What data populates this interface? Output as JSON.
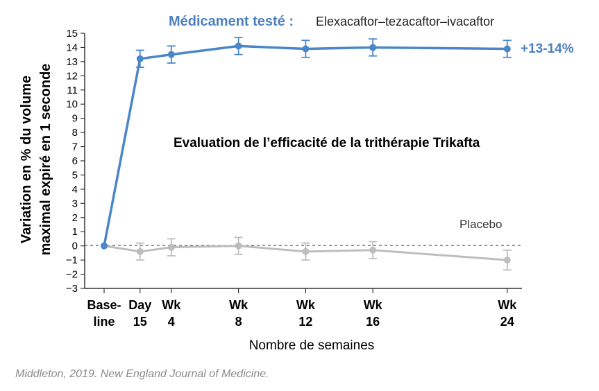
{
  "chart_data": {
    "type": "line",
    "title": "Evaluation de l’efficacité de la trithérapie Trikafta",
    "header_label": "Médicament testé :",
    "header_drug": "Elexacaftor–tezacaftor–ivacaftor",
    "xlabel": "Nombre de semaines",
    "ylabel_lines": [
      "Variation en % du volume",
      "maximal expiré en 1 seconde"
    ],
    "categories": [
      {
        "top": "Base-",
        "bottom": "line",
        "week": 0
      },
      {
        "top": "Day",
        "bottom": "15",
        "week": 2.14
      },
      {
        "top": "Wk",
        "bottom": "4",
        "week": 4
      },
      {
        "top": "Wk",
        "bottom": "8",
        "week": 8
      },
      {
        "top": "Wk",
        "bottom": "12",
        "week": 12
      },
      {
        "top": "Wk",
        "bottom": "16",
        "week": 16
      },
      {
        "top": "Wk",
        "bottom": "24",
        "week": 24
      }
    ],
    "ylim": [
      -3,
      15
    ],
    "yticks": [
      -3,
      -2,
      -1,
      0,
      1,
      2,
      3,
      4,
      5,
      6,
      7,
      8,
      9,
      10,
      11,
      12,
      13,
      14,
      15
    ],
    "reference_line": 0,
    "series": [
      {
        "name": "Elexacaftor–tezacaftor–ivacaftor",
        "color": "#4a86c8",
        "values": [
          0,
          13.2,
          13.5,
          14.1,
          13.9,
          14.0,
          13.9
        ],
        "error": [
          0,
          0.6,
          0.6,
          0.6,
          0.6,
          0.6,
          0.6
        ],
        "end_label": "+13-14%"
      },
      {
        "name": "Placebo",
        "color": "#bdbdbd",
        "values": [
          0,
          -0.4,
          -0.1,
          0.0,
          -0.4,
          -0.3,
          -1.0
        ],
        "error": [
          0,
          0.6,
          0.6,
          0.6,
          0.6,
          0.6,
          0.7
        ],
        "end_label": "Placebo"
      }
    ]
  },
  "source": "Middleton, 2019. New England Journal of Medicine."
}
